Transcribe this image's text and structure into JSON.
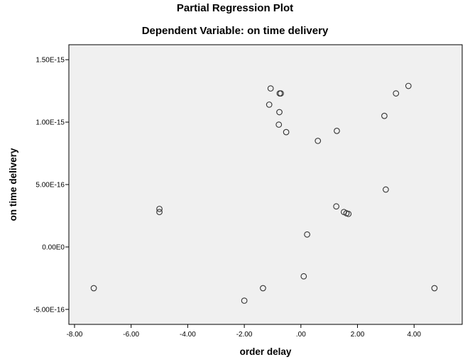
{
  "chart_data": {
    "type": "scatter",
    "title": "Partial Regression Plot",
    "subtitle": "Dependent Variable: on time delivery",
    "xlabel": "order delay",
    "ylabel": "on time delivery",
    "xlim": [
      -8.2,
      5.7
    ],
    "ylim": [
      -6.2e-16,
      1.62e-15
    ],
    "x_ticks": [
      {
        "value": -8,
        "label": "-8.00"
      },
      {
        "value": -6,
        "label": "-6.00"
      },
      {
        "value": -4,
        "label": "-4.00"
      },
      {
        "value": -2,
        "label": "-2.00"
      },
      {
        "value": 0,
        "label": ".00"
      },
      {
        "value": 2,
        "label": "2.00"
      },
      {
        "value": 4,
        "label": "4.00"
      }
    ],
    "y_ticks": [
      {
        "value": -5e-16,
        "label": "-5.00E-16"
      },
      {
        "value": 0,
        "label": "0.00E0"
      },
      {
        "value": 5e-16,
        "label": "5.00E-16"
      },
      {
        "value": 1e-15,
        "label": "1.00E-15"
      },
      {
        "value": 1.5e-15,
        "label": "1.50E-15"
      }
    ],
    "grid": false,
    "points": [
      {
        "x": -7.32,
        "y": -3.3e-16
      },
      {
        "x": -5.0,
        "y": 3.05e-16
      },
      {
        "x": -5.0,
        "y": 2.8e-16
      },
      {
        "x": -2.0,
        "y": -4.3e-16
      },
      {
        "x": -1.34,
        "y": -3.3e-16
      },
      {
        "x": -1.07,
        "y": 1.27e-15
      },
      {
        "x": -1.12,
        "y": 1.14e-15
      },
      {
        "x": -0.75,
        "y": 1.23e-15
      },
      {
        "x": -0.71,
        "y": 1.23e-15
      },
      {
        "x": -0.76,
        "y": 1.08e-15
      },
      {
        "x": -0.78,
        "y": 9.8e-16
      },
      {
        "x": -0.52,
        "y": 9.2e-16
      },
      {
        "x": 0.1,
        "y": -2.35e-16
      },
      {
        "x": 0.22,
        "y": 1e-16
      },
      {
        "x": 0.6,
        "y": 8.5e-16
      },
      {
        "x": 1.27,
        "y": 9.3e-16
      },
      {
        "x": 1.25,
        "y": 3.25e-16
      },
      {
        "x": 1.52,
        "y": 2.8e-16
      },
      {
        "x": 1.61,
        "y": 2.7e-16
      },
      {
        "x": 1.68,
        "y": 2.65e-16
      },
      {
        "x": 2.95,
        "y": 1.05e-15
      },
      {
        "x": 3.0,
        "y": 4.6e-16
      },
      {
        "x": 3.36,
        "y": 1.23e-15
      },
      {
        "x": 3.8,
        "y": 1.29e-15
      },
      {
        "x": 4.72,
        "y": -3.3e-16
      }
    ]
  },
  "colors": {
    "plot_background": "#f0f0f0",
    "marker_stroke": "#333333",
    "axis": "#000000"
  }
}
